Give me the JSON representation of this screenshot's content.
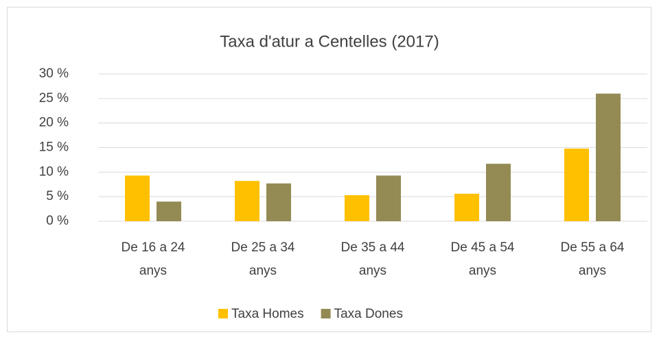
{
  "chart_data": {
    "type": "bar",
    "title": "Taxa d'atur a Centelles (2017)",
    "categories": [
      "De 16 a 24 anys",
      "De 25 a 34 anys",
      "De 35 a 44 anys",
      "De 45 a 54 anys",
      "De 55 a 64 anys"
    ],
    "series": [
      {
        "name": "Taxa Homes",
        "color": "#ffc000",
        "values": [
          9.3,
          8.2,
          5.3,
          5.6,
          14.8
        ]
      },
      {
        "name": "Taxa Dones",
        "color": "#948a54",
        "values": [
          4.0,
          7.7,
          9.3,
          11.7,
          26.0
        ]
      }
    ],
    "ylim": [
      0,
      30
    ],
    "yticks": [
      {
        "value": 0,
        "label": "0 %"
      },
      {
        "value": 5,
        "label": "5 %"
      },
      {
        "value": 10,
        "label": "10 %"
      },
      {
        "value": 15,
        "label": "15 %"
      },
      {
        "value": 20,
        "label": "20 %"
      },
      {
        "value": 25,
        "label": "25 %"
      },
      {
        "value": 30,
        "label": "30 %"
      }
    ],
    "grid": true,
    "legend": "bottom"
  }
}
